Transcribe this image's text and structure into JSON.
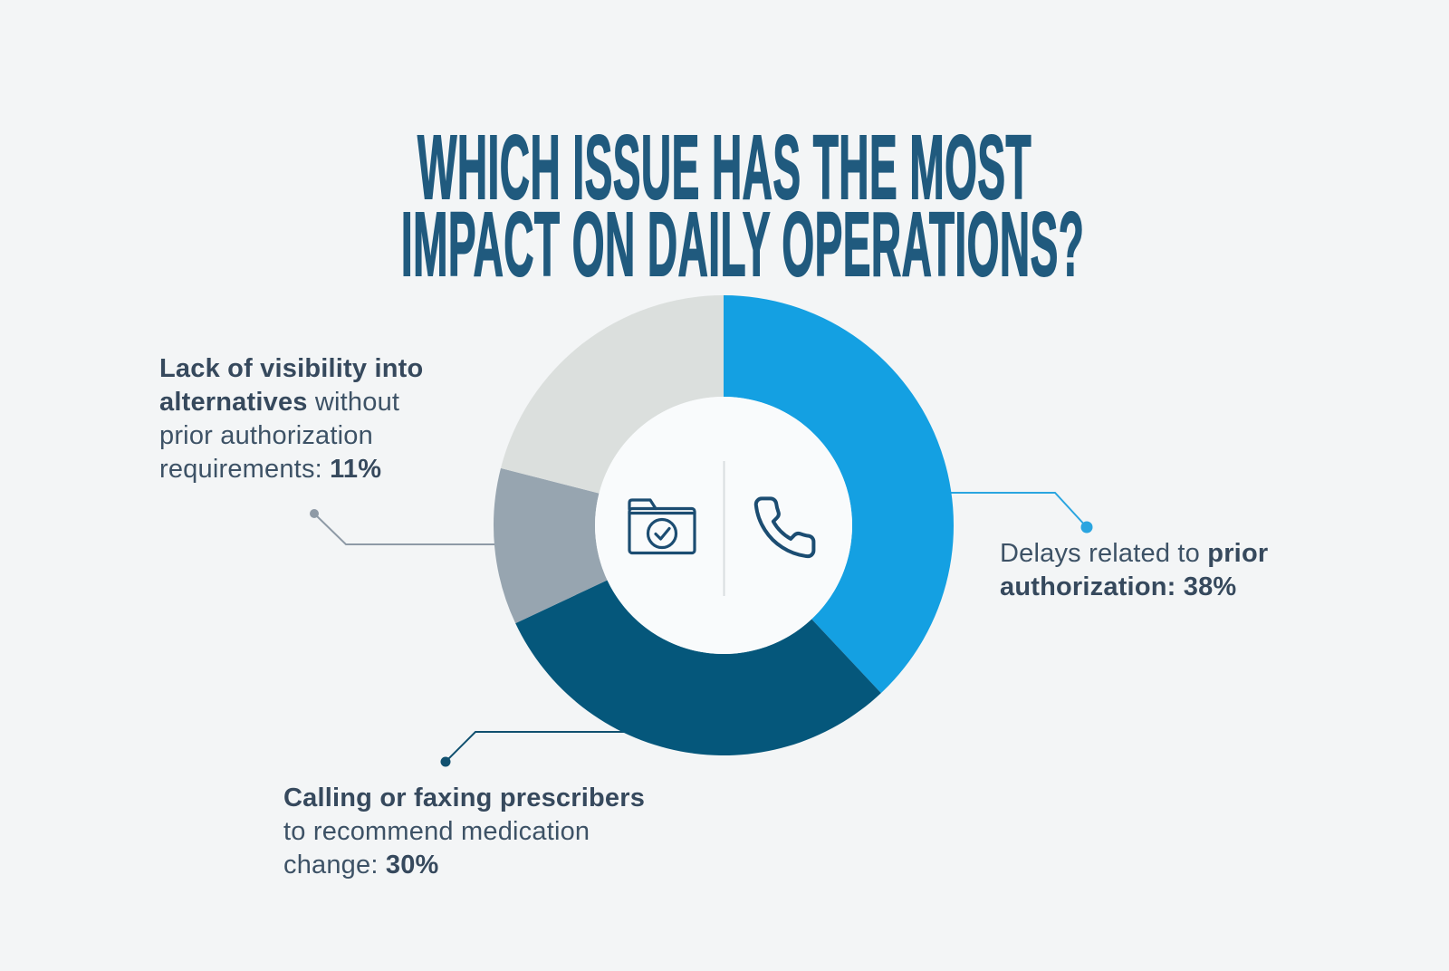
{
  "title": {
    "line1": "WHICH ISSUE HAS THE MOST",
    "line2": "IMPACT ON DAILY OPERATIONS?"
  },
  "chart_data": {
    "type": "pie",
    "subtype": "donut",
    "title": "WHICH ISSUE HAS THE MOST IMPACT ON DAILY OPERATIONS?",
    "start_angle_deg": 0,
    "direction": "clockwise",
    "hole_ratio": 0.56,
    "legend": "none",
    "slices": [
      {
        "label": "Delays related to prior authorization",
        "value": 38,
        "unit": "%",
        "color": "#14a0e2"
      },
      {
        "label": "Calling or faxing prescribers to recommend medication change",
        "value": 30,
        "unit": "%",
        "color": "#05577b"
      },
      {
        "label": "Lack of visibility into alternatives without prior authorization requirements",
        "value": 11,
        "unit": "%",
        "color": "#97a5b0"
      },
      {
        "label": "",
        "value": 21,
        "unit": "%",
        "color": "#dbdfdd"
      }
    ],
    "center_icons": [
      "folder-check",
      "phone"
    ]
  },
  "annotations": {
    "left": {
      "lines": [
        [
          {
            "t": "Lack of visibility into",
            "b": true
          }
        ],
        [
          {
            "t": "alternatives",
            "b": true
          },
          {
            "t": " without",
            "b": false
          }
        ],
        [
          {
            "t": "prior authorization",
            "b": false
          }
        ],
        [
          {
            "t": "requirements: ",
            "b": false
          },
          {
            "t": "11%",
            "b": true
          }
        ]
      ]
    },
    "right": {
      "lines": [
        [
          {
            "t": "Delays related to ",
            "b": false
          },
          {
            "t": "prior",
            "b": true
          }
        ],
        [
          {
            "t": "authorization: 38%",
            "b": true
          }
        ]
      ]
    },
    "bottom": {
      "lines": [
        [
          {
            "t": "Calling or faxing prescribers",
            "b": true
          }
        ],
        [
          {
            "t": "to recommend medication",
            "b": false
          }
        ],
        [
          {
            "t": "change: ",
            "b": false
          },
          {
            "t": "30%",
            "b": true
          }
        ]
      ]
    }
  },
  "colors": {
    "background": "#f3f5f6",
    "title_text": "#205a7e",
    "label_text": "#3d5266",
    "label_text_bold": "#36495d",
    "donut_inner": "#f9fbfc",
    "divider": "#d9dde0",
    "icon_stroke": "#1c4d72",
    "leader_left": "#8e9aa6",
    "leader_right": "#2aa5e0",
    "leader_bottom": "#10506f"
  }
}
